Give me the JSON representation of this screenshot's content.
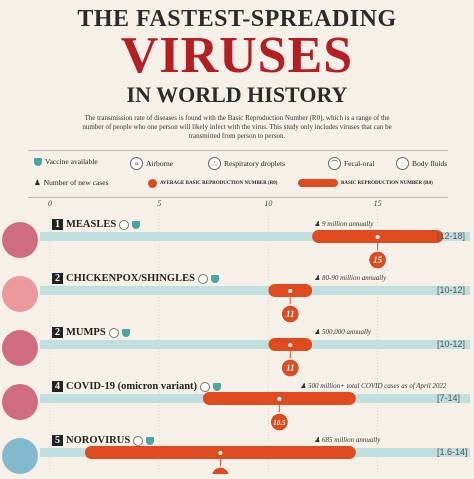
{
  "header": {
    "line1": "THE FASTEST-SPREADING",
    "line2": "VIRUSES",
    "line3": "IN WORLD HISTORY",
    "description": "The transmission rate of diseases is found with the Basic Reproduction Number (R0), which is a range of the number of people who one person will likely infect with the virus. This study only includes viruses that can be transmitted from person to person."
  },
  "legend": {
    "vaccine": "Vaccine available",
    "airborne": "Airborne",
    "respiratory": "Respiratory droplets",
    "fecal": "Fecal-oral",
    "fluids": "Body fluids",
    "cases": "Number of new cases",
    "avg": "AVERAGE BASIC REPRODUCTION NUMBER (R0)",
    "range": "BASIC REPRODUCTION NUMBER (R0)",
    "colors": {
      "bar": "#e04a1f",
      "track": "#bfe0df",
      "accent": "#b51f24"
    }
  },
  "chart_data": {
    "type": "bar",
    "xlim": [
      0,
      19
    ],
    "ticks": [
      "0",
      "5",
      "10",
      "15"
    ],
    "tick_values": [
      0,
      5,
      10,
      15
    ],
    "rows": [
      {
        "rank": "1",
        "name": "MEASLES",
        "cases": "9 million annually",
        "range_label": "[12-18]",
        "range": [
          12,
          18
        ],
        "avg": 15,
        "avg_label": "15"
      },
      {
        "rank": "2",
        "name": "CHICKENPOX/SHINGLES",
        "cases": "80-90 million annually",
        "range_label": "[10-12]",
        "range": [
          10,
          12
        ],
        "avg": 11,
        "avg_label": "11"
      },
      {
        "rank": "2",
        "name": "MUMPS",
        "cases": "500,000 annually",
        "range_label": "[10-12]",
        "range": [
          10,
          12
        ],
        "avg": 11,
        "avg_label": "11"
      },
      {
        "rank": "4",
        "name": "COVID-19 (omicron variant)",
        "cases": "500 million+ total COVID cases as of April 2022",
        "range_label": "[7-14]",
        "range": [
          7,
          14
        ],
        "avg": 10.5,
        "avg_label": "10.5"
      },
      {
        "rank": "5",
        "name": "NOROVIRUS",
        "cases": "685 million annually",
        "range_label": "[1.6-14]",
        "range": [
          1.6,
          14
        ],
        "avg": 7.8,
        "avg_label": ""
      }
    ]
  }
}
